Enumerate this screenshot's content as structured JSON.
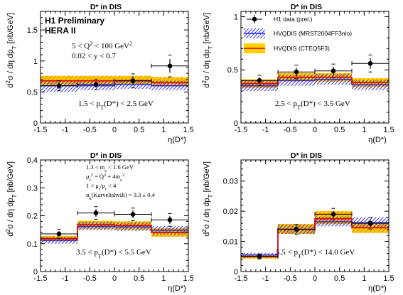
{
  "chart_data": [
    {
      "type": "line",
      "title": "D* in DIS",
      "xlabel": "η(D*)",
      "ylabel": "d²σ / dη dpT [nb/GeV]",
      "xlim": [
        -1.5,
        1.5
      ],
      "ylim": [
        0,
        1.8
      ],
      "x_ticks": [
        "-1.5",
        "-1",
        "-0.5",
        "0",
        "0.5",
        "1",
        "1.5"
      ],
      "y_ticks": [
        "0",
        "0.5",
        "1",
        "1.5"
      ],
      "bins": [
        [
          -1.5,
          -0.75
        ],
        [
          -0.75,
          0
        ],
        [
          0,
          0.75
        ],
        [
          0.75,
          1.5
        ]
      ],
      "pt_range": "1.5 < pT(D*) < 2.5 GeV",
      "header": [
        "H1 Preliminary",
        "HERA II"
      ],
      "cuts": [
        "5 < Q² < 100 GeV²",
        "0.02 < y < 0.7"
      ],
      "data": {
        "x": [
          -1.125,
          -0.375,
          0.375,
          1.125
        ],
        "y": [
          0.6,
          0.62,
          0.68,
          0.92
        ],
        "err": [
          0.05,
          0.05,
          0.07,
          0.11
        ]
      },
      "cteq": {
        "central": [
          0.68,
          0.68,
          0.68,
          0.65
        ],
        "low": [
          0.61,
          0.62,
          0.62,
          0.59
        ],
        "high": [
          0.76,
          0.76,
          0.76,
          0.74
        ]
      },
      "mrst": {
        "central": [
          0.6,
          0.6,
          0.62,
          0.6
        ],
        "low": [
          0.5,
          0.53,
          0.55,
          0.53
        ],
        "high": [
          0.69,
          0.69,
          0.7,
          0.68
        ]
      }
    },
    {
      "type": "line",
      "title": "D* in DIS",
      "xlabel": "η(D*)",
      "ylabel": "d²σ / dη dpT [nb/GeV]",
      "xlim": [
        -1.5,
        1.5
      ],
      "ylim": [
        0,
        1.05
      ],
      "x_ticks": [
        "-1.5",
        "-1",
        "-0.5",
        "0",
        "0.5",
        "1",
        "1.5"
      ],
      "y_ticks": [
        "0",
        "0.5",
        "1"
      ],
      "bins": [
        [
          -1.5,
          -0.75
        ],
        [
          -0.75,
          0
        ],
        [
          0,
          0.75
        ],
        [
          0.75,
          1.5
        ]
      ],
      "pt_range": "2.5 < pT(D*) < 3.5 GeV",
      "legend": [
        {
          "label": "H1 data (prel.)"
        },
        {
          "label": "HVQDIS (MRST2004FF3nlo)"
        },
        {
          "label": "HVQDIS (CTEQ5F3)"
        }
      ],
      "data": {
        "x": [
          -1.125,
          -0.375,
          0.375,
          1.125
        ],
        "y": [
          0.4,
          0.48,
          0.49,
          0.56
        ],
        "err": [
          0.03,
          0.04,
          0.04,
          0.05
        ]
      },
      "cteq": {
        "central": [
          0.37,
          0.43,
          0.43,
          0.38
        ],
        "low": [
          0.33,
          0.39,
          0.39,
          0.34
        ],
        "high": [
          0.41,
          0.47,
          0.47,
          0.42
        ]
      },
      "mrst": {
        "central": [
          0.35,
          0.4,
          0.41,
          0.36
        ],
        "low": [
          0.3,
          0.35,
          0.36,
          0.31
        ],
        "high": [
          0.4,
          0.45,
          0.46,
          0.4
        ]
      }
    },
    {
      "type": "line",
      "title": "D* in DIS",
      "xlabel": "η(D*)",
      "ylabel": "d²σ / dη dpT [nb/GeV]",
      "xlim": [
        -1.5,
        1.5
      ],
      "ylim": [
        0,
        0.4
      ],
      "x_ticks": [
        "-1.5",
        "-1",
        "-0.5",
        "0",
        "0.5",
        "1",
        "1.5"
      ],
      "y_ticks": [
        "0",
        "0.1",
        "0.2",
        "0.3",
        "0.4"
      ],
      "bins": [
        [
          -1.5,
          -0.75
        ],
        [
          -0.75,
          0
        ],
        [
          0,
          0.75
        ],
        [
          0.75,
          1.5
        ]
      ],
      "pt_range": "3.5 < pT(D*) < 5.5 GeV",
      "params": [
        "1.3 < mc < 1.6 GeV",
        "μr² = Q² + 4mc²",
        "1 < μf/μr < 4",
        "αk(Karvelishvili) = 3.3 ± 0.4"
      ],
      "data": {
        "x": [
          -1.125,
          -0.375,
          0.375,
          1.125
        ],
        "y": [
          0.135,
          0.21,
          0.205,
          0.185
        ],
        "err": [
          0.01,
          0.014,
          0.014,
          0.014
        ]
      },
      "cteq": {
        "central": [
          0.118,
          0.168,
          0.165,
          0.14
        ],
        "low": [
          0.108,
          0.153,
          0.15,
          0.125
        ],
        "high": [
          0.128,
          0.182,
          0.18,
          0.155
        ]
      },
      "mrst": {
        "central": [
          0.112,
          0.162,
          0.16,
          0.148
        ],
        "low": [
          0.1,
          0.148,
          0.146,
          0.133
        ],
        "high": [
          0.124,
          0.178,
          0.175,
          0.163
        ]
      }
    },
    {
      "type": "line",
      "title": "D* in DIS",
      "xlabel": "η(D*)",
      "ylabel": "d²σ / dη dpT [nb/GeV]",
      "xlim": [
        -1.5,
        1.5
      ],
      "ylim": [
        0,
        0.037
      ],
      "x_ticks": [
        "-1.5",
        "-1",
        "-0.5",
        "0",
        "0.5",
        "1",
        "1.5"
      ],
      "y_ticks": [
        "0",
        "0.01",
        "0.02",
        "0.03"
      ],
      "bins": [
        [
          -1.5,
          -0.75
        ],
        [
          -0.75,
          0
        ],
        [
          0,
          0.75
        ],
        [
          0.75,
          1.5
        ]
      ],
      "pt_range": "5.5 < pT(D*) < 14.0 GeV",
      "data": {
        "x": [
          -1.125,
          -0.375,
          0.375,
          1.125
        ],
        "y": [
          0.005,
          0.014,
          0.019,
          0.016
        ],
        "err": [
          0.0005,
          0.001,
          0.0012,
          0.0012
        ]
      },
      "cteq": {
        "central": [
          0.005,
          0.014,
          0.0175,
          0.0145
        ],
        "low": [
          0.0043,
          0.0125,
          0.0157,
          0.0128
        ],
        "high": [
          0.0057,
          0.0158,
          0.02,
          0.0162
        ]
      },
      "mrst": {
        "central": [
          0.0055,
          0.014,
          0.0165,
          0.0162
        ],
        "low": [
          0.0046,
          0.0125,
          0.015,
          0.0145
        ],
        "high": [
          0.0062,
          0.0155,
          0.0182,
          0.018
        ]
      }
    }
  ],
  "colors": {
    "data": "#000000",
    "cteq_band": "#ffd000",
    "cteq_hatch": "#f08000",
    "cteq_line": "#e00000",
    "mrst_band": "#1f1fff",
    "mrst_line": "#1f1fff"
  }
}
